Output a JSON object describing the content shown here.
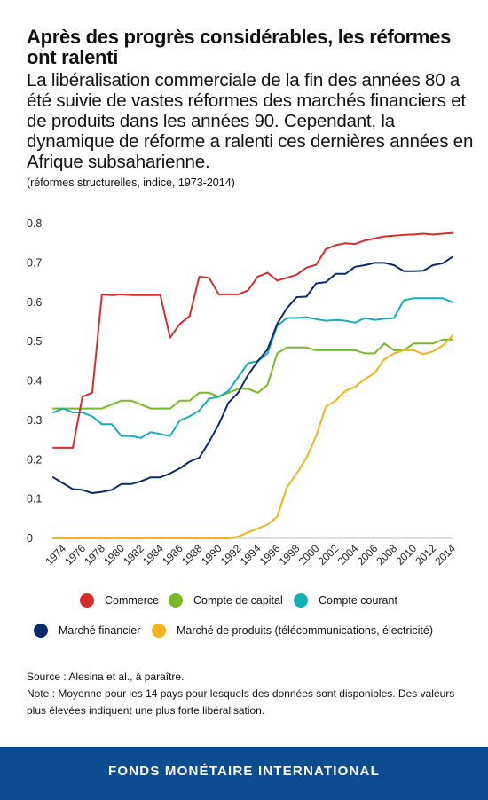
{
  "header": {
    "title": "Après des progrès considérables, les réformes ont ralenti",
    "subtitle": "La libéralisation commerciale de la fin des années 80 a été suivie de vastes réformes des marchés financiers et de produits dans les années 90. Cependant, la dynamique de réforme a ralenti ces dernières années en Afrique subsaharienne.",
    "units": "(réformes structurelles, indice, 1973-2014)"
  },
  "chart_data": {
    "type": "line",
    "title": "Après des progrès considérables, les réformes ont ralenti",
    "ylabel": "",
    "xlabel": "",
    "ylim": [
      0,
      0.8
    ],
    "yticks": [
      "0",
      "0.1",
      "0.2",
      "0.3",
      "0.4",
      "0.5",
      "0.6",
      "0.7",
      "0.8"
    ],
    "xticks": [
      "1974",
      "1976",
      "1978",
      "1980",
      "1982",
      "1984",
      "1986",
      "1988",
      "1990",
      "1992",
      "1994",
      "1996",
      "1998",
      "2000",
      "2002",
      "2004",
      "2006",
      "2008",
      "2010",
      "2012",
      "2014"
    ],
    "grid": false,
    "legend_position": "bottom",
    "x": [
      1973,
      1974,
      1975,
      1976,
      1977,
      1978,
      1979,
      1980,
      1981,
      1982,
      1983,
      1984,
      1985,
      1986,
      1987,
      1988,
      1989,
      1990,
      1991,
      1992,
      1993,
      1994,
      1995,
      1996,
      1997,
      1998,
      1999,
      2000,
      2001,
      2002,
      2003,
      2004,
      2005,
      2006,
      2007,
      2008,
      2009,
      2010,
      2011,
      2012,
      2013,
      2014
    ],
    "series": [
      {
        "name": "Commerce",
        "color": "#d92b2b",
        "values": [
          0.23,
          0.23,
          0.23,
          0.36,
          0.37,
          0.62,
          0.618,
          0.62,
          0.618,
          0.618,
          0.618,
          0.618,
          0.51,
          0.545,
          0.565,
          0.665,
          0.662,
          0.62,
          0.62,
          0.62,
          0.63,
          0.665,
          0.675,
          0.655,
          0.662,
          0.67,
          0.688,
          0.695,
          0.735,
          0.745,
          0.75,
          0.748,
          0.757,
          0.762,
          0.767,
          0.769,
          0.771,
          0.772,
          0.774,
          0.772,
          0.774,
          0.776
        ]
      },
      {
        "name": "Compte de capital",
        "color": "#78b928",
        "values": [
          0.33,
          0.33,
          0.33,
          0.33,
          0.33,
          0.33,
          0.34,
          0.35,
          0.35,
          0.34,
          0.33,
          0.33,
          0.33,
          0.35,
          0.35,
          0.37,
          0.37,
          0.36,
          0.37,
          0.38,
          0.38,
          0.37,
          0.39,
          0.47,
          0.485,
          0.485,
          0.485,
          0.478,
          0.478,
          0.478,
          0.478,
          0.478,
          0.47,
          0.47,
          0.495,
          0.478,
          0.478,
          0.495,
          0.495,
          0.495,
          0.505,
          0.505
        ]
      },
      {
        "name": "Compte courant",
        "color": "#12b1b9",
        "values": [
          0.32,
          0.33,
          0.32,
          0.32,
          0.31,
          0.29,
          0.29,
          0.26,
          0.26,
          0.255,
          0.27,
          0.265,
          0.26,
          0.3,
          0.31,
          0.325,
          0.355,
          0.36,
          0.375,
          0.41,
          0.445,
          0.45,
          0.47,
          0.54,
          0.56,
          0.56,
          0.562,
          0.557,
          0.553,
          0.555,
          0.553,
          0.548,
          0.56,
          0.555,
          0.558,
          0.56,
          0.605,
          0.61,
          0.61,
          0.61,
          0.61,
          0.6
        ]
      },
      {
        "name": "Marché financier",
        "color": "#0b2a6b",
        "values": [
          0.155,
          0.14,
          0.125,
          0.123,
          0.115,
          0.118,
          0.123,
          0.138,
          0.138,
          0.145,
          0.155,
          0.155,
          0.165,
          0.178,
          0.195,
          0.205,
          0.245,
          0.29,
          0.345,
          0.37,
          0.415,
          0.45,
          0.48,
          0.545,
          0.585,
          0.613,
          0.614,
          0.648,
          0.651,
          0.672,
          0.672,
          0.69,
          0.694,
          0.7,
          0.7,
          0.694,
          0.679,
          0.679,
          0.68,
          0.694,
          0.699,
          0.715
        ]
      },
      {
        "name": "Marché de produits (télécommunications, électricité)",
        "color": "#f5b31a",
        "values": [
          0,
          0,
          0,
          0,
          0,
          0,
          0,
          0,
          0,
          0,
          0,
          0,
          0,
          0,
          0,
          0,
          0,
          0,
          0,
          0.005,
          0.015,
          0.025,
          0.035,
          0.055,
          0.13,
          0.165,
          0.205,
          0.26,
          0.335,
          0.35,
          0.375,
          0.385,
          0.405,
          0.42,
          0.455,
          0.47,
          0.478,
          0.478,
          0.468,
          0.475,
          0.49,
          0.515
        ]
      }
    ]
  },
  "legend": [
    {
      "label": "Commerce",
      "color": "#d92b2b"
    },
    {
      "label": "Compte de capital",
      "color": "#78b928"
    },
    {
      "label": "Compte courant",
      "color": "#12b1b9"
    },
    {
      "label": "Marché financier",
      "color": "#0b2a6b"
    },
    {
      "label": "Marché de produits (télécommunications, électricité)",
      "color": "#f5b31a"
    }
  ],
  "notes": {
    "source": "Source : Alesina et al., à paraître.",
    "note": "Note : Moyenne pour les 14 pays pour lesquels des données sont disponibles. Des valeurs plus élevées indiquent une plus forte libéralisation."
  },
  "footer": {
    "label": "FONDS MONÉTAIRE INTERNATIONAL",
    "color": "#0e4c92"
  }
}
